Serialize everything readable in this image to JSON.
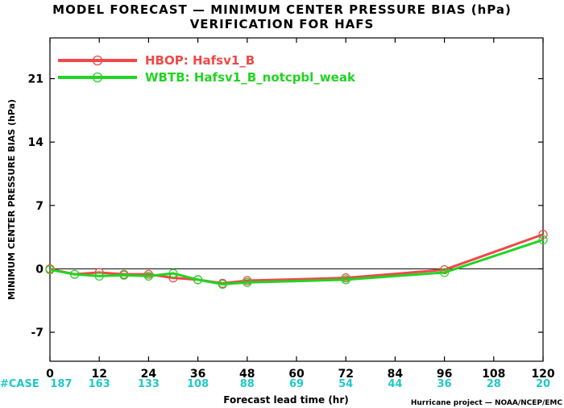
{
  "colors": {
    "hbop": "#f04848",
    "wbtb": "#22d422",
    "case": "#22c8c8",
    "zero_line": "#000000"
  },
  "chart_data": {
    "type": "line",
    "title": "MODEL FORECAST — MINIMUM CENTER PRESSURE BIAS (hPa)",
    "subtitle": "VERIFICATION FOR HAFS",
    "xlabel": "Forecast lead time (hr)",
    "ylabel": "MINIMUM CENTER PRESSURE BIAS (hPa)",
    "xlim": [
      0,
      120
    ],
    "ylim": [
      -10.2,
      25.5
    ],
    "x_ticks": [
      0,
      12,
      24,
      36,
      48,
      60,
      72,
      84,
      96,
      108,
      120
    ],
    "y_ticks": [
      -7,
      0,
      7,
      14,
      21
    ],
    "grid": false,
    "zero_line": true,
    "legend_position": "top-left",
    "case_label": "#CASE",
    "case_x": [
      0,
      12,
      24,
      36,
      48,
      60,
      72,
      84,
      96,
      108,
      120
    ],
    "case_counts": [
      "187",
      "163",
      "133",
      "108",
      "88",
      "69",
      "54",
      "44",
      "36",
      "28",
      "20"
    ],
    "credit": "Hurricane project — NOAA/NCEP/EMC",
    "series": [
      {
        "name": "HBOP: Hafsv1_B",
        "color_key": "hbop",
        "x": [
          0,
          6,
          12,
          18,
          24,
          30,
          36,
          42,
          48,
          72,
          96,
          120
        ],
        "y": [
          0.0,
          -0.6,
          -0.4,
          -0.6,
          -0.6,
          -1.0,
          -1.2,
          -1.6,
          -1.3,
          -1.0,
          -0.1,
          3.8
        ]
      },
      {
        "name": "WBTB: Hafsv1_B_notcpbl_weak",
        "color_key": "wbtb",
        "x": [
          0,
          6,
          12,
          18,
          24,
          30,
          36,
          42,
          48,
          72,
          96,
          120
        ],
        "y": [
          -0.1,
          -0.6,
          -0.8,
          -0.7,
          -0.8,
          -0.5,
          -1.2,
          -1.7,
          -1.5,
          -1.2,
          -0.4,
          3.2
        ]
      }
    ]
  }
}
